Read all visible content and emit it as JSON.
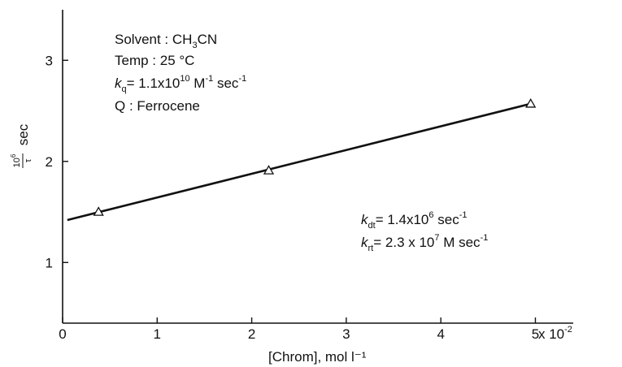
{
  "chart_data": {
    "type": "scatter",
    "xlabel": "[Chrom], mol l⁻¹",
    "ylabel": "10⁶/τ sec",
    "ylabel_parts": {
      "numerator": "10",
      "exp": "6",
      "denominator": "τ",
      "unit": "sec"
    },
    "xlim": [
      0,
      5.4
    ],
    "ylim": [
      0.4,
      3.5
    ],
    "x_ticks": [
      "0",
      "1",
      "2",
      "3",
      "4",
      "5"
    ],
    "x_tick_values": [
      0,
      1,
      2,
      3,
      4,
      5
    ],
    "x_scale_label": "× 10⁻²",
    "x_scale_parts": {
      "base": "x 10",
      "exp": "-2"
    },
    "y_ticks": [
      "1",
      "2",
      "3"
    ],
    "y_tick_values": [
      1,
      2,
      3
    ],
    "grid": false,
    "series": [
      {
        "marker": "open-triangle",
        "x": [
          0.38,
          2.18,
          4.95
        ],
        "y": [
          1.5,
          1.91,
          2.57
        ]
      }
    ],
    "fit_line": {
      "x": [
        0.05,
        4.95
      ],
      "y": [
        1.42,
        2.57
      ]
    },
    "annotations": {
      "solvent": {
        "prefix": "Solvent : CH",
        "sub": "3",
        "suffix": "CN"
      },
      "temp": {
        "text": "Temp : 25 °C"
      },
      "kq": {
        "k": "k",
        "k_sub": "q",
        "eq": "= 1.1x10",
        "exp": "10",
        "unit": " M",
        "unit_exp": "-1",
        "unit2": " sec",
        "unit2_exp": "-1"
      },
      "quencher": {
        "text": "Q : Ferrocene"
      },
      "kdt": {
        "k": "k",
        "k_sub": "dt",
        "eq": "= 1.4x10",
        "exp": "6",
        "unit": " sec",
        "unit_exp": "-1"
      },
      "krt": {
        "k": "k",
        "k_sub": "rt",
        "eq": "= 2.3  x  10",
        "exp": "7",
        "unit": "  M  sec",
        "unit_exp": "-1"
      }
    }
  }
}
